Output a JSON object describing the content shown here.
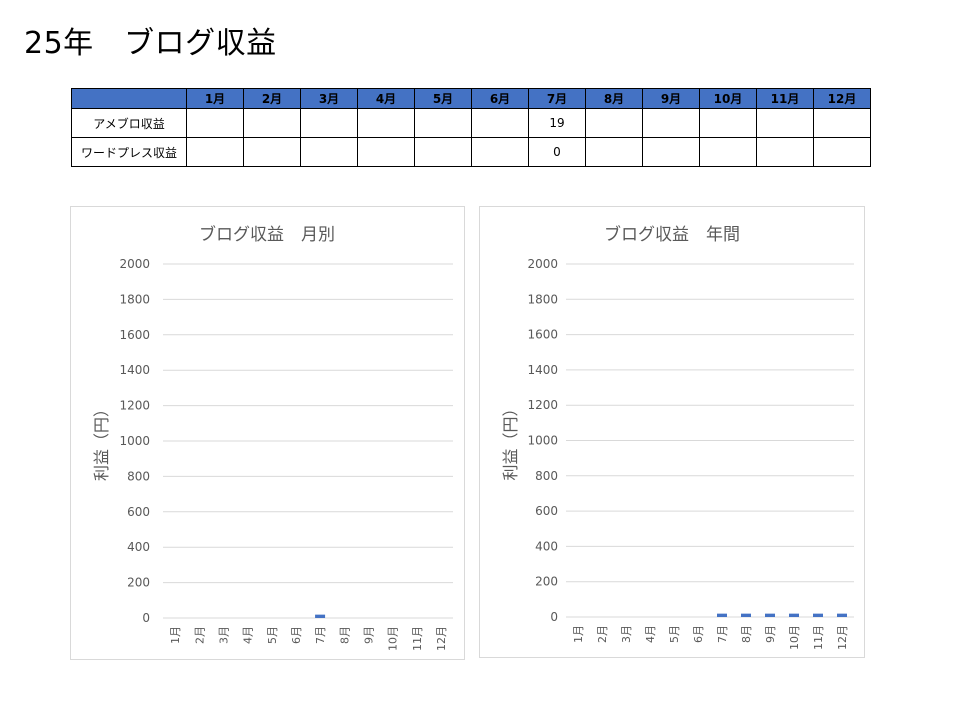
{
  "page": {
    "title": "25年　ブログ収益"
  },
  "table": {
    "corner": "",
    "months": [
      "1月",
      "2月",
      "3月",
      "4月",
      "5月",
      "6月",
      "7月",
      "8月",
      "9月",
      "10月",
      "11月",
      "12月"
    ],
    "rows": [
      {
        "label": "アメブロ収益",
        "values": [
          "",
          "",
          "",
          "",
          "",
          "",
          "19",
          "",
          "",
          "",
          "",
          ""
        ]
      },
      {
        "label": "ワードプレス収益",
        "values": [
          "",
          "",
          "",
          "",
          "",
          "",
          "0",
          "",
          "",
          "",
          "",
          ""
        ]
      }
    ]
  },
  "colors": {
    "header_fill": "#4472c4",
    "bar": "#4472c4",
    "grid": "#d9d9d9",
    "axis_text": "#595959"
  },
  "chart_data": [
    {
      "type": "bar",
      "title": "ブログ収益　月別",
      "xlabel": "",
      "ylabel": "利益（円）",
      "categories": [
        "1月",
        "2月",
        "3月",
        "4月",
        "5月",
        "6月",
        "7月",
        "8月",
        "9月",
        "10月",
        "11月",
        "12月"
      ],
      "values": [
        0,
        0,
        0,
        0,
        0,
        0,
        19,
        0,
        0,
        0,
        0,
        0
      ],
      "ylim": [
        0,
        2000
      ],
      "yticks": [
        0,
        200,
        400,
        600,
        800,
        1000,
        1200,
        1400,
        1600,
        1800,
        2000
      ],
      "grid": true,
      "legend": "none"
    },
    {
      "type": "bar",
      "title": "ブログ収益　年間",
      "xlabel": "",
      "ylabel": "利益（円）",
      "categories": [
        "1月",
        "2月",
        "3月",
        "4月",
        "5月",
        "6月",
        "7月",
        "8月",
        "9月",
        "10月",
        "11月",
        "12月"
      ],
      "values": [
        0,
        0,
        0,
        0,
        0,
        0,
        19,
        19,
        19,
        19,
        19,
        19
      ],
      "ylim": [
        0,
        2000
      ],
      "yticks": [
        0,
        200,
        400,
        600,
        800,
        1000,
        1200,
        1400,
        1600,
        1800,
        2000
      ],
      "grid": true,
      "legend": "none"
    }
  ]
}
